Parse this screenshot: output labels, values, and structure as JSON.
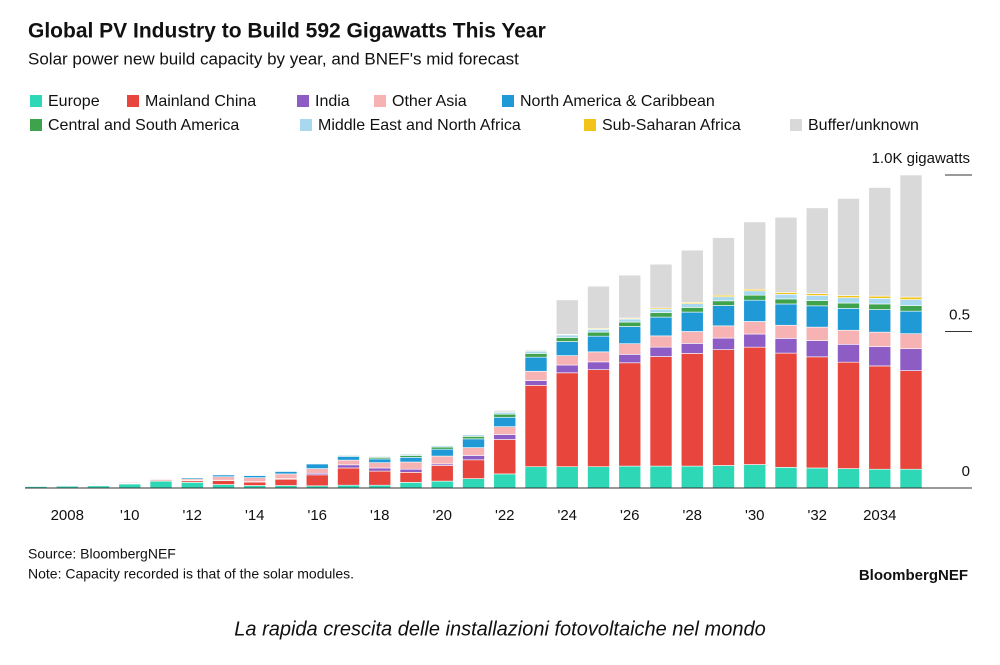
{
  "chart_data": {
    "type": "stacked-bar",
    "title": "Global PV Industry to Build 592 Gigawatts This Year",
    "subtitle": "Solar power new build capacity by year, and BNEF's mid forecast",
    "source": "Source: BloombergNEF",
    "note": "Note: Capacity recorded is that of the solar modules.",
    "brand": "BloombergNEF",
    "caption": "La rapida crescita delle installazioni fotovoltaiche nel mondo",
    "categories": [
      null,
      "2008",
      null,
      "'10",
      null,
      "'12",
      null,
      "'14",
      null,
      "'16",
      null,
      "'18",
      null,
      "'20",
      null,
      "'22",
      null,
      "'24",
      null,
      "'26",
      null,
      "'28",
      null,
      "'30",
      null,
      "'32",
      null,
      "2034",
      null
    ],
    "ylim": [
      0,
      1.0
    ],
    "yticks": [
      0,
      0.5,
      {
        "value": 1.0,
        "label": "1.0K gigawatts"
      }
    ],
    "series": [
      {
        "name": "Europe",
        "color": "#2ed8b6",
        "values": [
          0.005,
          0.006,
          0.007,
          0.013,
          0.022,
          0.018,
          0.011,
          0.008,
          0.008,
          0.007,
          0.009,
          0.009,
          0.018,
          0.022,
          0.03,
          0.045,
          0.068,
          0.068,
          0.068,
          0.07,
          0.07,
          0.07,
          0.072,
          0.075,
          0.066,
          0.064,
          0.062,
          0.06,
          0.06
        ]
      },
      {
        "name": "Mainland China",
        "color": "#e8453c",
        "values": [
          0,
          0.0005,
          0.001,
          0.001,
          0.003,
          0.005,
          0.013,
          0.011,
          0.02,
          0.035,
          0.055,
          0.045,
          0.032,
          0.05,
          0.06,
          0.11,
          0.26,
          0.3,
          0.31,
          0.33,
          0.35,
          0.36,
          0.37,
          0.375,
          0.365,
          0.355,
          0.34,
          0.33,
          0.315
        ]
      },
      {
        "name": "India",
        "color": "#8e5cc5",
        "values": [
          0,
          0,
          0,
          0.001,
          0.001,
          0.001,
          0.001,
          0.001,
          0.002,
          0.005,
          0.01,
          0.01,
          0.01,
          0.005,
          0.014,
          0.016,
          0.015,
          0.025,
          0.025,
          0.027,
          0.03,
          0.032,
          0.037,
          0.042,
          0.047,
          0.052,
          0.057,
          0.062,
          0.07
        ]
      },
      {
        "name": "Other Asia",
        "color": "#f7b3b3",
        "values": [
          0.001,
          0.001,
          0.002,
          0.003,
          0.003,
          0.005,
          0.011,
          0.013,
          0.015,
          0.015,
          0.015,
          0.017,
          0.023,
          0.025,
          0.025,
          0.025,
          0.03,
          0.03,
          0.032,
          0.034,
          0.036,
          0.038,
          0.039,
          0.04,
          0.042,
          0.043,
          0.045,
          0.046,
          0.048
        ]
      },
      {
        "name": "North America & Caribbean",
        "color": "#1f9ad6",
        "values": [
          0.0005,
          0.001,
          0.001,
          0.002,
          0.002,
          0.004,
          0.006,
          0.007,
          0.008,
          0.015,
          0.012,
          0.012,
          0.015,
          0.022,
          0.028,
          0.03,
          0.045,
          0.045,
          0.05,
          0.055,
          0.06,
          0.062,
          0.065,
          0.068,
          0.068,
          0.068,
          0.07,
          0.072,
          0.072
        ]
      },
      {
        "name": "Central and South America",
        "color": "#3fa34d",
        "values": [
          0,
          0,
          0,
          0,
          0,
          0.0005,
          0.0005,
          0.0005,
          0.001,
          0.002,
          0.003,
          0.005,
          0.006,
          0.007,
          0.008,
          0.01,
          0.012,
          0.013,
          0.013,
          0.014,
          0.014,
          0.015,
          0.015,
          0.016,
          0.016,
          0.017,
          0.017,
          0.018,
          0.018
        ]
      },
      {
        "name": "Middle East and North Africa",
        "color": "#a7d8f0",
        "values": [
          0,
          0,
          0,
          0,
          0.0005,
          0.0005,
          0.0005,
          0.0005,
          0.001,
          0.002,
          0.002,
          0.003,
          0.004,
          0.004,
          0.005,
          0.006,
          0.007,
          0.008,
          0.009,
          0.01,
          0.011,
          0.012,
          0.013,
          0.014,
          0.015,
          0.016,
          0.017,
          0.018,
          0.019
        ]
      },
      {
        "name": "Sub-Saharan Africa",
        "color": "#f2c318",
        "values": [
          0,
          0,
          0,
          0,
          0,
          0,
          0,
          0,
          0.0005,
          0.0005,
          0.0005,
          0.0005,
          0.001,
          0.001,
          0.001,
          0.001,
          0.002,
          0.002,
          0.003,
          0.003,
          0.004,
          0.004,
          0.005,
          0.005,
          0.006,
          0.006,
          0.007,
          0.007,
          0.008
        ]
      },
      {
        "name": "Buffer/unknown",
        "color": "#d9d9d9",
        "values": [
          0,
          0,
          0,
          0,
          0,
          0,
          0,
          0,
          0,
          0,
          0,
          0,
          0,
          0,
          0.002,
          0.005,
          0.003,
          0.11,
          0.135,
          0.137,
          0.14,
          0.167,
          0.184,
          0.215,
          0.24,
          0.274,
          0.31,
          0.347,
          0.39
        ]
      }
    ]
  }
}
